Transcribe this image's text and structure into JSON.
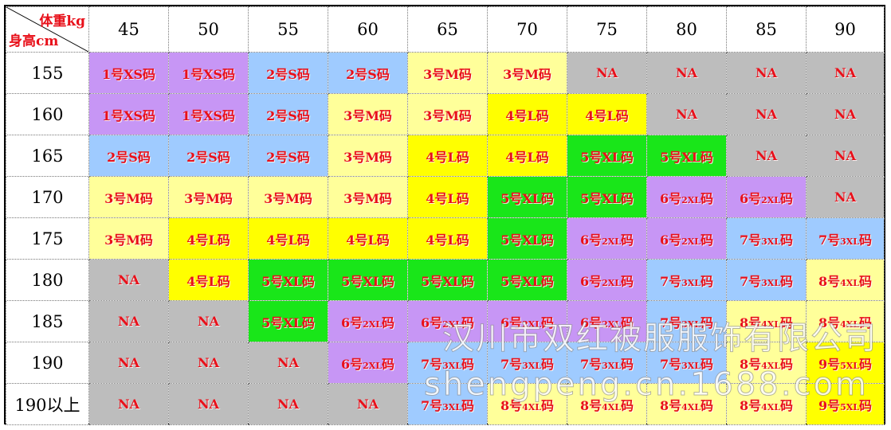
{
  "corner": {
    "weight_label": "体重kg",
    "height_label": "身高cm"
  },
  "weights": [
    "45",
    "50",
    "55",
    "60",
    "65",
    "70",
    "75",
    "80",
    "85",
    "90"
  ],
  "colors": {
    "XS": "#c796f5",
    "S": "#9fcbff",
    "M": "#ffff9a",
    "L": "#ffff00",
    "XL": "#19e619",
    "2XL": "#c796f5",
    "3XL": "#9fcbff",
    "4XL": "#ffff9a",
    "5XL": "#ffff00",
    "NA": "#bdbdbd",
    "text": "#e8101a"
  },
  "rows": [
    {
      "height": "155",
      "cells": [
        {
          "n": "1号",
          "s": "XS",
          "t": "码",
          "c": "XS"
        },
        {
          "n": "1号",
          "s": "XS",
          "t": "码",
          "c": "XS"
        },
        {
          "n": "2号",
          "s": "S",
          "t": "码",
          "c": "S"
        },
        {
          "n": "2号",
          "s": "S",
          "t": "码",
          "c": "S"
        },
        {
          "n": "3号",
          "s": "M",
          "t": "码",
          "c": "M"
        },
        {
          "n": "3号",
          "s": "M",
          "t": "码",
          "c": "M"
        },
        {
          "n": "NA",
          "s": "",
          "t": "",
          "c": "NA"
        },
        {
          "n": "NA",
          "s": "",
          "t": "",
          "c": "NA"
        },
        {
          "n": "NA",
          "s": "",
          "t": "",
          "c": "NA"
        },
        {
          "n": "NA",
          "s": "",
          "t": "",
          "c": "NA"
        }
      ]
    },
    {
      "height": "160",
      "cells": [
        {
          "n": "1号",
          "s": "XS",
          "t": "码",
          "c": "XS"
        },
        {
          "n": "1号",
          "s": "XS",
          "t": "码",
          "c": "XS"
        },
        {
          "n": "2号",
          "s": "S",
          "t": "码",
          "c": "S"
        },
        {
          "n": "3号",
          "s": "M",
          "t": "码",
          "c": "M"
        },
        {
          "n": "3号",
          "s": "M",
          "t": "码",
          "c": "M"
        },
        {
          "n": "4号",
          "s": "L",
          "t": "码",
          "c": "L"
        },
        {
          "n": "4号",
          "s": "L",
          "t": "码",
          "c": "L"
        },
        {
          "n": "NA",
          "s": "",
          "t": "",
          "c": "NA"
        },
        {
          "n": "NA",
          "s": "",
          "t": "",
          "c": "NA"
        },
        {
          "n": "NA",
          "s": "",
          "t": "",
          "c": "NA"
        }
      ]
    },
    {
      "height": "165",
      "cells": [
        {
          "n": "2号",
          "s": "S",
          "t": "码",
          "c": "S"
        },
        {
          "n": "2号",
          "s": "S",
          "t": "码",
          "c": "S"
        },
        {
          "n": "2号",
          "s": "S",
          "t": "码",
          "c": "S"
        },
        {
          "n": "3号",
          "s": "M",
          "t": "码",
          "c": "M"
        },
        {
          "n": "4号",
          "s": "L",
          "t": "码",
          "c": "L"
        },
        {
          "n": "4号",
          "s": "L",
          "t": "码",
          "c": "L"
        },
        {
          "n": "5号",
          "s": "XL",
          "t": "码",
          "c": "XL"
        },
        {
          "n": "5号",
          "s": "XL",
          "t": "码",
          "c": "XL"
        },
        {
          "n": "NA",
          "s": "",
          "t": "",
          "c": "NA"
        },
        {
          "n": "NA",
          "s": "",
          "t": "",
          "c": "NA"
        }
      ]
    },
    {
      "height": "170",
      "cells": [
        {
          "n": "3号",
          "s": "M",
          "t": "码",
          "c": "M"
        },
        {
          "n": "3号",
          "s": "M",
          "t": "码",
          "c": "M"
        },
        {
          "n": "3号",
          "s": "M",
          "t": "码",
          "c": "M"
        },
        {
          "n": "3号",
          "s": "M",
          "t": "码",
          "c": "M"
        },
        {
          "n": "4号",
          "s": "L",
          "t": "码",
          "c": "L"
        },
        {
          "n": "5号",
          "s": "XL",
          "t": "码",
          "c": "XL"
        },
        {
          "n": "5号",
          "s": "XL",
          "t": "码",
          "c": "XL"
        },
        {
          "n": "6号",
          "s": "2XL",
          "t": "码",
          "c": "2XL",
          "small": true
        },
        {
          "n": "6号",
          "s": "2XL",
          "t": "码",
          "c": "2XL",
          "small": true
        },
        {
          "n": "NA",
          "s": "",
          "t": "",
          "c": "NA"
        }
      ]
    },
    {
      "height": "175",
      "cells": [
        {
          "n": "3号",
          "s": "M",
          "t": "码",
          "c": "M"
        },
        {
          "n": "4号",
          "s": "L",
          "t": "码",
          "c": "L"
        },
        {
          "n": "4号",
          "s": "L",
          "t": "码",
          "c": "L"
        },
        {
          "n": "4号",
          "s": "L",
          "t": "码",
          "c": "L"
        },
        {
          "n": "4号",
          "s": "L",
          "t": "码",
          "c": "L"
        },
        {
          "n": "5号",
          "s": "XL",
          "t": "码",
          "c": "XL"
        },
        {
          "n": "6号",
          "s": "2XL",
          "t": "码",
          "c": "2XL",
          "small": true
        },
        {
          "n": "6号",
          "s": "2XL",
          "t": "码",
          "c": "2XL",
          "small": true
        },
        {
          "n": "7号",
          "s": "3XL",
          "t": "码",
          "c": "3XL",
          "small": true
        },
        {
          "n": "7号",
          "s": "3XL",
          "t": "码",
          "c": "3XL",
          "small": true
        }
      ]
    },
    {
      "height": "180",
      "cells": [
        {
          "n": "NA",
          "s": "",
          "t": "",
          "c": "NA"
        },
        {
          "n": "4号",
          "s": "L",
          "t": "码",
          "c": "L"
        },
        {
          "n": "5号",
          "s": "XL",
          "t": "码",
          "c": "XL"
        },
        {
          "n": "5号",
          "s": "XL",
          "t": "码",
          "c": "XL"
        },
        {
          "n": "5号",
          "s": "XL",
          "t": "码",
          "c": "XL"
        },
        {
          "n": "5号",
          "s": "XL",
          "t": "码",
          "c": "XL"
        },
        {
          "n": "6号",
          "s": "2XL",
          "t": "码",
          "c": "2XL",
          "small": true
        },
        {
          "n": "7号",
          "s": "3XL",
          "t": "码",
          "c": "3XL",
          "small": true
        },
        {
          "n": "7号",
          "s": "3XL",
          "t": "码",
          "c": "3XL",
          "small": true
        },
        {
          "n": "8号",
          "s": "4XL",
          "t": "码",
          "c": "4XL",
          "small": true
        }
      ]
    },
    {
      "height": "185",
      "cells": [
        {
          "n": "NA",
          "s": "",
          "t": "",
          "c": "NA"
        },
        {
          "n": "NA",
          "s": "",
          "t": "",
          "c": "NA"
        },
        {
          "n": "5号",
          "s": "XL",
          "t": "码",
          "c": "XL"
        },
        {
          "n": "6号",
          "s": "2XL",
          "t": "码",
          "c": "2XL",
          "small": true
        },
        {
          "n": "6号",
          "s": "2XL",
          "t": "码",
          "c": "2XL",
          "small": true
        },
        {
          "n": "6号",
          "s": "2XL",
          "t": "码",
          "c": "2XL",
          "small": true
        },
        {
          "n": "6号",
          "s": "2XL",
          "t": "码",
          "c": "2XL",
          "small": true
        },
        {
          "n": "7号",
          "s": "3XL",
          "t": "码",
          "c": "3XL",
          "small": true
        },
        {
          "n": "8号",
          "s": "4XL",
          "t": "码",
          "c": "4XL",
          "small": true
        },
        {
          "n": "8号",
          "s": "4XL",
          "t": "码",
          "c": "4XL",
          "small": true
        }
      ]
    },
    {
      "height": "190",
      "cells": [
        {
          "n": "NA",
          "s": "",
          "t": "",
          "c": "NA"
        },
        {
          "n": "NA",
          "s": "",
          "t": "",
          "c": "NA"
        },
        {
          "n": "NA",
          "s": "",
          "t": "",
          "c": "NA"
        },
        {
          "n": "6号",
          "s": "2XL",
          "t": "码",
          "c": "2XL",
          "small": true
        },
        {
          "n": "7号",
          "s": "3XL",
          "t": "码",
          "c": "3XL",
          "small": true
        },
        {
          "n": "7号",
          "s": "3XL",
          "t": "码",
          "c": "3XL",
          "small": true
        },
        {
          "n": "7号",
          "s": "3XL",
          "t": "码",
          "c": "3XL",
          "small": true
        },
        {
          "n": "7号",
          "s": "3XL",
          "t": "码",
          "c": "3XL",
          "small": true
        },
        {
          "n": "8号",
          "s": "4XL",
          "t": "码",
          "c": "4XL",
          "small": true
        },
        {
          "n": "9号",
          "s": "5XL",
          "t": "码",
          "c": "5XL",
          "small": true
        }
      ]
    },
    {
      "height": "190以上",
      "cells": [
        {
          "n": "NA",
          "s": "",
          "t": "",
          "c": "NA"
        },
        {
          "n": "NA",
          "s": "",
          "t": "",
          "c": "NA"
        },
        {
          "n": "NA",
          "s": "",
          "t": "",
          "c": "NA"
        },
        {
          "n": "NA",
          "s": "",
          "t": "",
          "c": "NA"
        },
        {
          "n": "7号",
          "s": "3XL",
          "t": "码",
          "c": "3XL",
          "small": true
        },
        {
          "n": "8号",
          "s": "4XL",
          "t": "码",
          "c": "4XL",
          "small": true
        },
        {
          "n": "8号",
          "s": "4XL",
          "t": "码",
          "c": "4XL",
          "small": true
        },
        {
          "n": "8号",
          "s": "4XL",
          "t": "码",
          "c": "4XL",
          "small": true
        },
        {
          "n": "8号",
          "s": "4XL",
          "t": "码",
          "c": "4XL",
          "small": true
        },
        {
          "n": "9号",
          "s": "5XL",
          "t": "码",
          "c": "5XL",
          "small": true
        }
      ]
    }
  ],
  "watermark": {
    "line1": "汉川市双红被服服饰有限公司",
    "line2": "shengpeng.cn.1688.com"
  }
}
